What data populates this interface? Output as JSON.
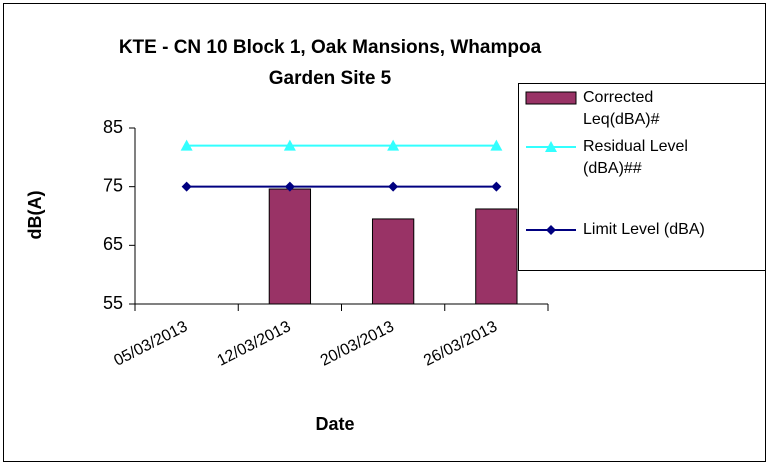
{
  "chart_data": {
    "type": "bar_line",
    "title": "KTE - CN 10 Block 1, Oak Mansions, Whampoa Garden Site 5",
    "xlabel": "Date",
    "ylabel": "dB(A)",
    "categories": [
      "05/03/2013",
      "12/03/2013",
      "20/03/2013",
      "26/03/2013"
    ],
    "series": [
      {
        "name": "Corrected Leq(dBA)#",
        "kind": "bar",
        "color": "#993366",
        "values": [
          null,
          74.6,
          69.5,
          71.2
        ]
      },
      {
        "name": "Residual Level (dBA)##",
        "kind": "line",
        "marker": "triangle",
        "color": "#33ffff",
        "values": [
          82,
          82,
          82,
          82
        ]
      },
      {
        "name": "Limit Level (dBA)",
        "kind": "line",
        "marker": "diamond",
        "color": "#000080",
        "values": [
          75,
          75,
          75,
          75
        ]
      }
    ],
    "ylim": [
      55,
      85
    ],
    "yticks": [
      55,
      65,
      75,
      85
    ],
    "grid": false,
    "legend": "right"
  }
}
